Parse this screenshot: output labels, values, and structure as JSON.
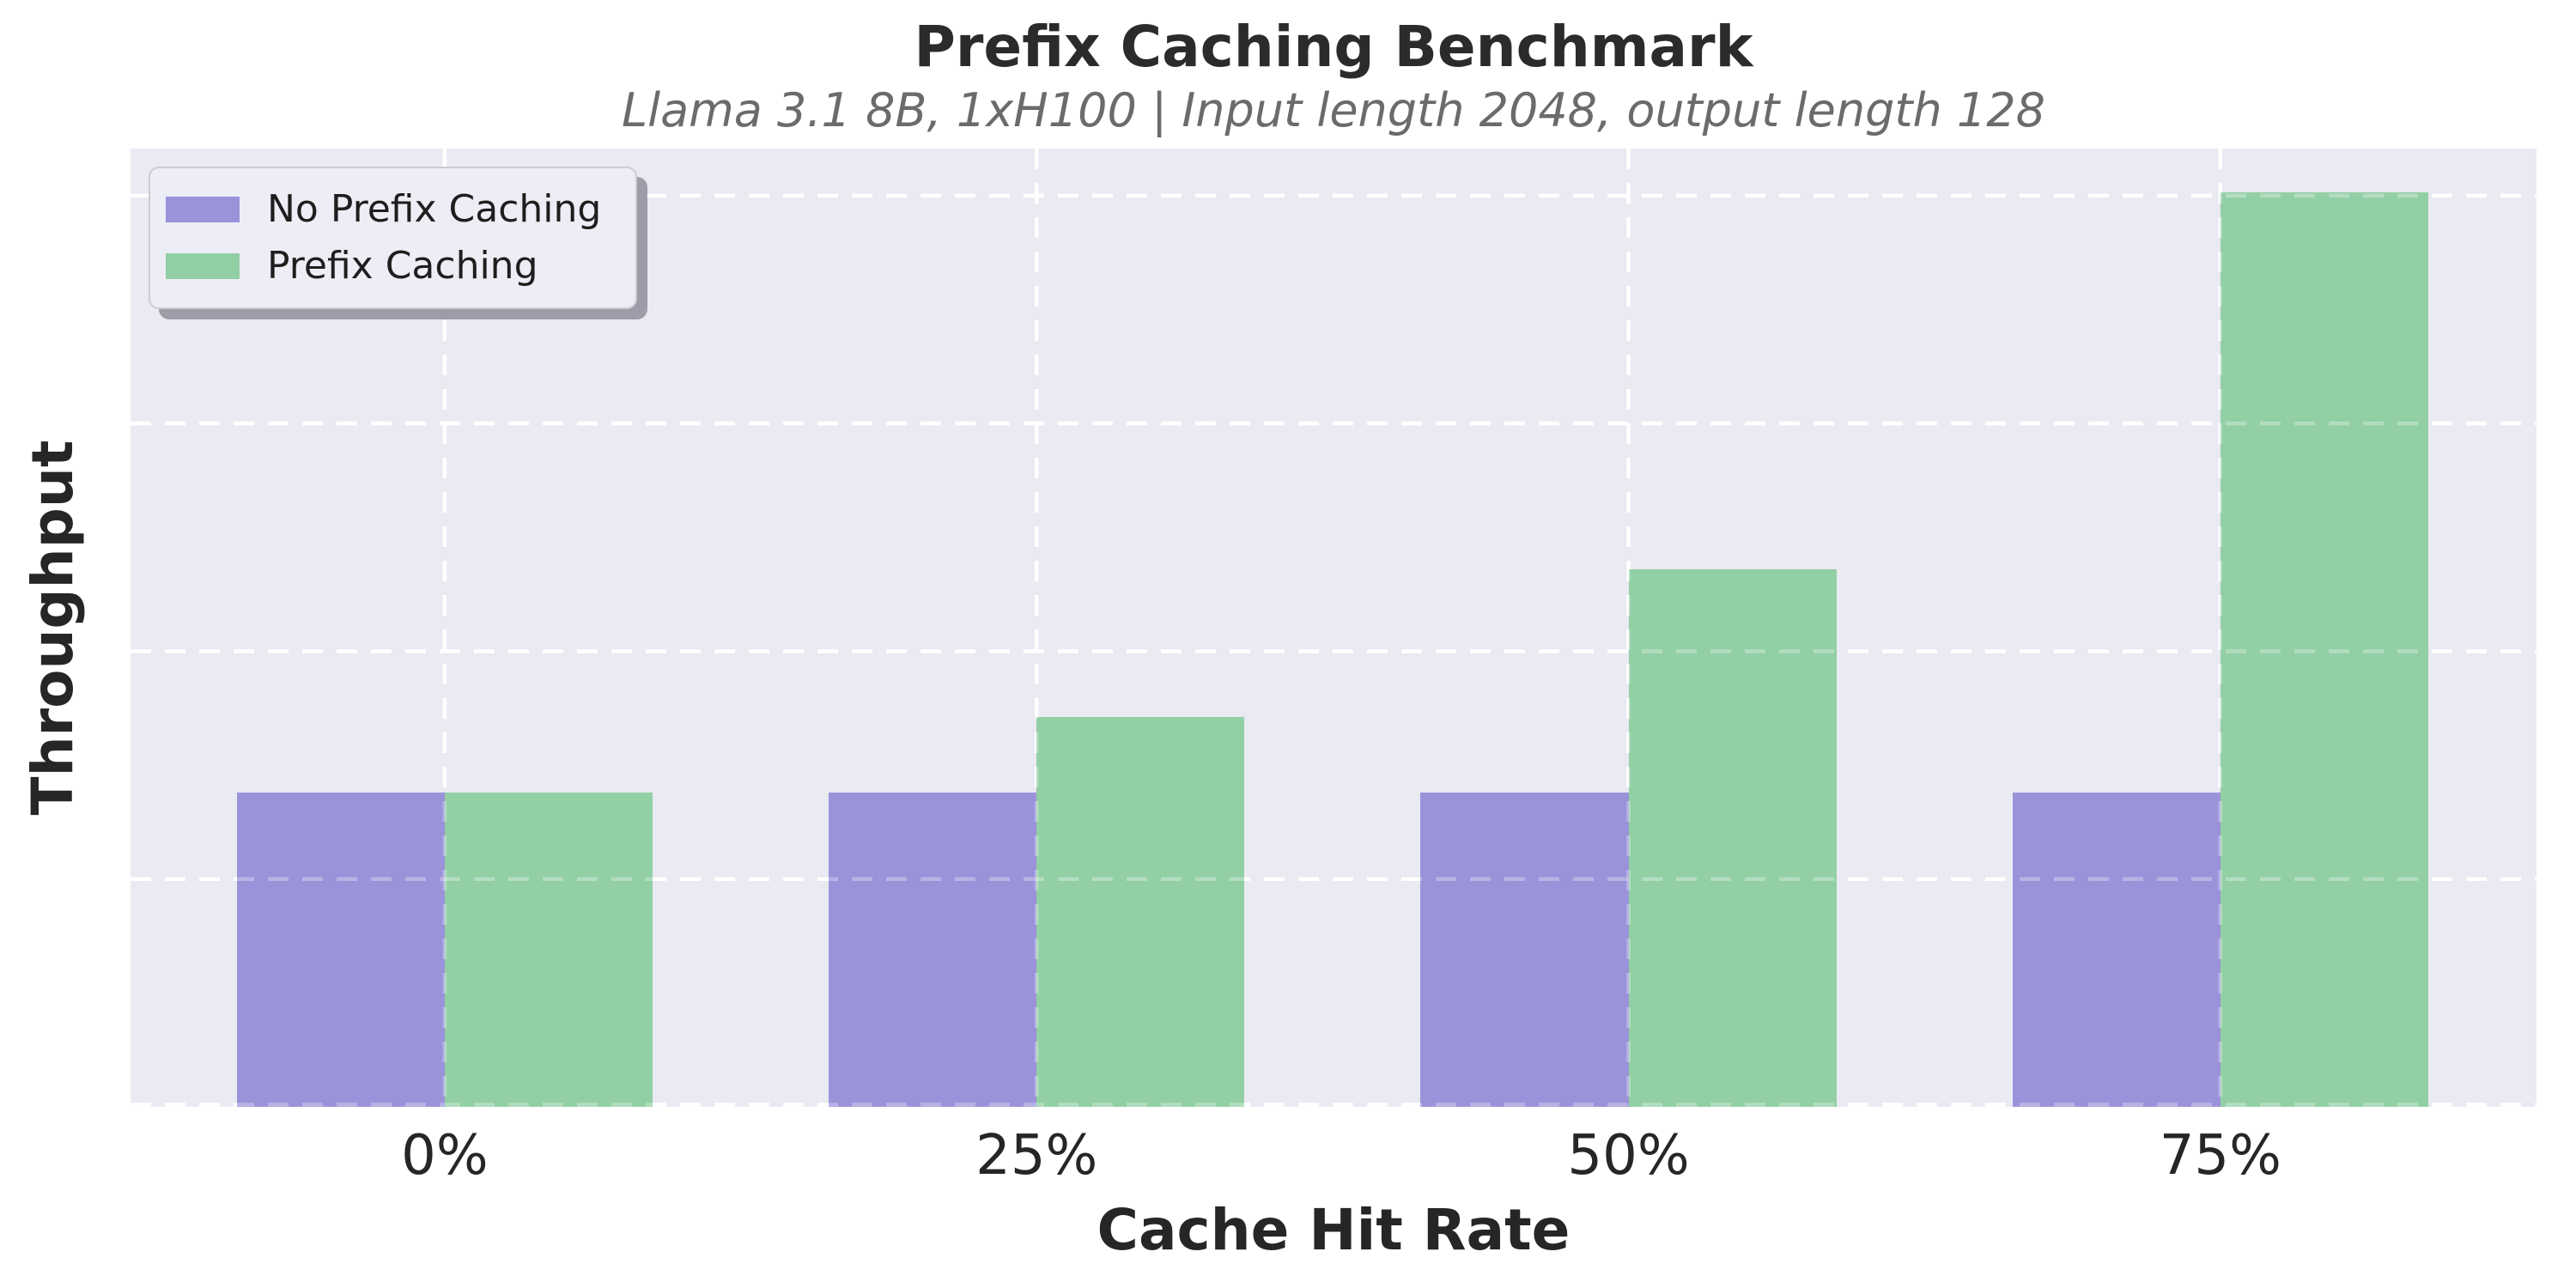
{
  "chart_data": {
    "type": "bar",
    "title": "Prefix Caching Benchmark",
    "subtitle": "Llama 3.1 8B, 1xH100 | Input length 2048, output length 128",
    "xlabel": "Cache Hit Rate",
    "ylabel": "Throughput",
    "categories": [
      "0%",
      "25%",
      "50%",
      "75%"
    ],
    "series": [
      {
        "name": "No Prefix Caching",
        "color": "#9a93da",
        "values": [
          1.0,
          1.0,
          1.0,
          1.0
        ]
      },
      {
        "name": "Prefix Caching",
        "color": "#92cfa5",
        "values": [
          1.0,
          1.24,
          1.71,
          2.91
        ]
      }
    ],
    "value_units": "relative throughput (No Prefix Caching = 1.0); y-axis has no tick labels",
    "ylim": [
      0,
      3.05
    ],
    "y_gridline_step": 0.725,
    "grid": "dashed white horizontal and vertical gridlines (seaborn darkgrid style)",
    "legend_position": "upper left",
    "colors": {
      "axes_background": "#eaeaf2",
      "figure_background": "#ffffff",
      "gridline": "#ffffff",
      "title_text": "#2b2b2b",
      "subtitle_text": "#6b6b6b",
      "tick_text": "#262626"
    }
  }
}
